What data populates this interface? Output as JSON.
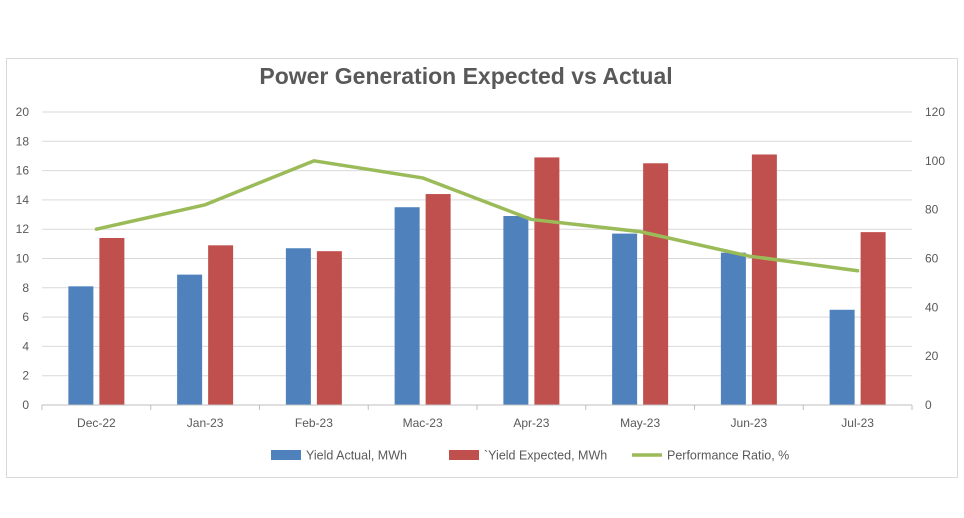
{
  "chart_data": {
    "type": "bar",
    "title": "Power Generation Expected vs Actual",
    "categories": [
      "Dec-22",
      "Jan-23",
      "Feb-23",
      "Mac-23",
      "Apr-23",
      "May-23",
      "Jun-23",
      "Jul-23"
    ],
    "series": [
      {
        "name": "Yield Actual, MWh",
        "type": "bar",
        "axis": "left",
        "color": "#4f81bd",
        "values": [
          8.1,
          8.9,
          10.7,
          13.5,
          12.9,
          11.7,
          10.4,
          6.5
        ]
      },
      {
        "name": "`Yield Expected, MWh",
        "type": "bar",
        "axis": "left",
        "color": "#c0504d",
        "values": [
          11.4,
          10.9,
          10.5,
          14.4,
          16.9,
          16.5,
          17.1,
          11.8
        ]
      },
      {
        "name": "Performance Ratio, %",
        "type": "line",
        "axis": "right",
        "color": "#9bbb59",
        "values": [
          72,
          82,
          100,
          93,
          76,
          71,
          61,
          55
        ]
      }
    ],
    "y_left": {
      "min": 0,
      "max": 20,
      "ticks": [
        "0",
        "2",
        "4",
        "6",
        "8",
        "10",
        "12",
        "14",
        "16",
        "18",
        "20"
      ]
    },
    "y_right": {
      "min": 0,
      "max": 120,
      "ticks": [
        "0",
        "20",
        "40",
        "60",
        "80",
        "100",
        "120"
      ]
    },
    "grid": true,
    "legend_position": "bottom"
  }
}
